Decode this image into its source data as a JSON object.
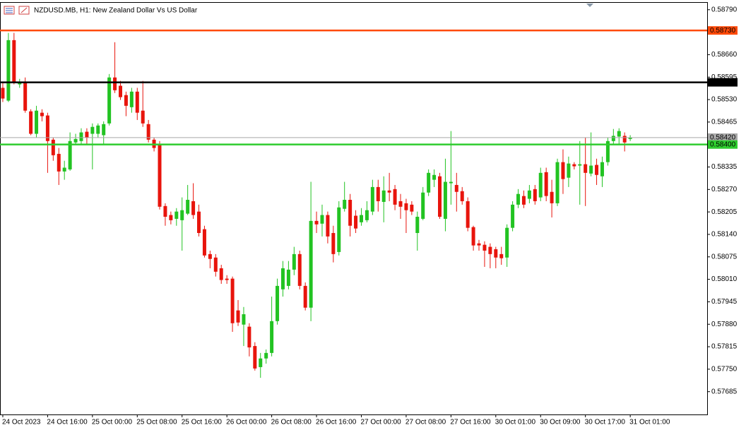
{
  "chart_data": {
    "type": "candlestick",
    "title": "NZDUSD.MB, H1:  New Zealand Dollar Vs US Dollar",
    "up_color": "#22c322",
    "down_color": "#e8140c",
    "ylim": [
      0.57619,
      0.58812
    ],
    "yticks": [
      {
        "value": 0.5879,
        "label": "0.58790"
      },
      {
        "value": 0.5866,
        "label": "0.58660"
      },
      0.58595,
      {
        "value": 0.5853,
        "label": "0.58530"
      },
      0.58465,
      0.58335,
      {
        "value": 0.5827,
        "label": "0.58270"
      },
      0.58205,
      {
        "value": 0.5814,
        "label": "0.58140"
      },
      0.58075,
      {
        "value": 0.5801,
        "label": "0.58010"
      },
      0.57945,
      {
        "value": 0.5788,
        "label": "0.57880"
      },
      0.57815,
      {
        "value": 0.5775,
        "label": "0.57750"
      },
      0.57685
    ],
    "categories": [
      "24 Oct 2023",
      null,
      null,
      null,
      null,
      null,
      null,
      null,
      "24 Oct 16:00",
      null,
      null,
      null,
      null,
      null,
      null,
      null,
      "25 Oct 00:00",
      null,
      null,
      null,
      null,
      null,
      null,
      null,
      "25 Oct 08:00",
      null,
      null,
      null,
      null,
      null,
      null,
      null,
      "25 Oct 16:00",
      null,
      null,
      null,
      null,
      null,
      null,
      null,
      "26 Oct 00:00",
      null,
      null,
      null,
      null,
      null,
      null,
      null,
      "26 Oct 08:00",
      null,
      null,
      null,
      null,
      null,
      null,
      null,
      "26 Oct 16:00",
      null,
      null,
      null,
      null,
      null,
      null,
      null,
      "27 Oct 00:00",
      null,
      null,
      null,
      null,
      null,
      null,
      null,
      "27 Oct 08:00",
      null,
      null,
      null,
      null,
      null,
      null,
      null,
      "27 Oct 16:00",
      null,
      null,
      null,
      null,
      null,
      null,
      null,
      "30 Oct 01:00",
      null,
      null,
      null,
      null,
      null,
      null,
      null,
      "30 Oct 09:00",
      null,
      null,
      null,
      null,
      null,
      null,
      null,
      "30 Oct 17:00",
      null,
      null,
      null,
      null,
      null,
      null,
      null,
      "31 Oct 01:00"
    ],
    "open": [
      0.58564,
      0.58527,
      0.58702,
      0.58574,
      0.58578,
      0.58496,
      0.58431,
      0.58492,
      0.58484,
      0.58414,
      0.58373,
      0.58322,
      0.58328,
      0.58406,
      0.5841,
      0.58437,
      0.58431,
      0.58431,
      0.58427,
      0.58461,
      0.58594,
      0.5857,
      0.58543,
      0.58508,
      0.58553,
      0.58498,
      0.58459,
      0.58414,
      0.584,
      0.58222,
      0.58196,
      0.58185,
      0.58181,
      0.582,
      0.58236,
      0.58206,
      0.58155,
      0.58083,
      0.58073,
      0.58042,
      0.58012,
      0.58012,
      0.5792,
      0.57879,
      0.57873,
      0.57817,
      0.57756,
      0.57781,
      0.57797,
      0.57889,
      0.57981,
      0.57991,
      0.58038,
      0.58083,
      0.57991,
      0.57928,
      0.58179,
      0.58171,
      0.58196,
      0.58144,
      0.58089,
      0.58214,
      0.5824,
      0.58194,
      0.58175,
      0.58181,
      0.58206,
      0.58277,
      0.58234,
      0.58267,
      0.58271,
      0.58236,
      0.5823,
      0.58226,
      0.58144,
      0.58185,
      0.58261,
      0.58298,
      0.58308,
      0.58185,
      0.58288,
      0.58283,
      0.58265,
      0.58236,
      0.58161,
      0.58114,
      0.5811,
      0.58104,
      0.58097,
      0.58083,
      0.58073,
      0.58159,
      0.58226,
      0.58251,
      0.58243,
      0.58271,
      0.58247,
      0.5832,
      0.58263,
      0.5823,
      0.58349,
      0.58304,
      0.58343,
      0.58339,
      0.58343,
      0.58316,
      0.58341,
      0.58308,
      0.58349,
      0.5841,
      0.58423,
      0.58425,
      0.58416
    ],
    "high": [
      0.58578,
      0.58723,
      0.58723,
      0.5859,
      0.58594,
      0.58502,
      0.58512,
      0.58502,
      0.58492,
      0.5842,
      0.5839,
      0.58353,
      0.58435,
      0.58431,
      0.58447,
      0.58447,
      0.58461,
      0.58461,
      0.58467,
      0.58604,
      0.58696,
      0.58584,
      0.58553,
      0.58564,
      0.58564,
      0.58584,
      0.58471,
      0.5842,
      0.5841,
      0.5823,
      0.58206,
      0.58216,
      0.58247,
      0.58283,
      0.58288,
      0.58226,
      0.58165,
      0.58093,
      0.58083,
      0.58052,
      0.58022,
      0.58018,
      0.5795,
      0.5793,
      0.57883,
      0.57828,
      0.57797,
      0.57807,
      0.5796,
      0.58012,
      0.58063,
      0.58063,
      0.58104,
      0.58093,
      0.58001,
      0.58292,
      0.58206,
      0.58226,
      0.58206,
      0.58165,
      0.58236,
      0.58292,
      0.58257,
      0.5821,
      0.58216,
      0.58236,
      0.58298,
      0.58298,
      0.58308,
      0.58318,
      0.58283,
      0.58257,
      0.58243,
      0.58236,
      0.58206,
      0.58277,
      0.58328,
      0.58328,
      0.58318,
      0.58359,
      0.58439,
      0.58318,
      0.58277,
      0.58247,
      0.58165,
      0.58124,
      0.5812,
      0.58114,
      0.58104,
      0.58104,
      0.58169,
      0.58236,
      0.58271,
      0.58267,
      0.58283,
      0.58283,
      0.58333,
      0.58333,
      0.58298,
      0.58359,
      0.58386,
      0.58365,
      0.58349,
      0.5841,
      0.5842,
      0.58435,
      0.58359,
      0.58365,
      0.5842,
      0.58445,
      0.58447,
      0.58435,
      0.58427
    ],
    "low": [
      0.58523,
      0.58523,
      0.58574,
      0.58564,
      0.58492,
      0.58427,
      0.5842,
      0.58467,
      0.58318,
      0.58353,
      0.58283,
      0.58298,
      0.58324,
      0.584,
      0.584,
      0.584,
      0.58328,
      0.5842,
      0.584,
      0.58455,
      0.58549,
      0.58529,
      0.58482,
      0.58492,
      0.58471,
      0.58451,
      0.58406,
      0.5838,
      0.58212,
      0.58165,
      0.58169,
      0.58165,
      0.58093,
      0.58196,
      0.58185,
      0.58134,
      0.58073,
      0.58042,
      0.58018,
      0.57997,
      0.57997,
      0.57858,
      0.57875,
      0.57817,
      0.57787,
      0.57746,
      0.57725,
      0.57766,
      0.57787,
      0.57879,
      0.5796,
      0.57981,
      0.58022,
      0.57981,
      0.5792,
      0.57889,
      0.58144,
      0.58134,
      0.58114,
      0.58059,
      0.58079,
      0.58206,
      0.58134,
      0.58144,
      0.58165,
      0.58175,
      0.58196,
      0.58206,
      0.58175,
      0.58236,
      0.5821,
      0.58185,
      0.58144,
      0.58196,
      0.58093,
      0.58181,
      0.58251,
      0.58277,
      0.58185,
      0.58149,
      0.58226,
      0.58206,
      0.58226,
      0.58149,
      0.58093,
      0.58093,
      0.58046,
      0.58042,
      0.58042,
      0.58052,
      0.58046,
      0.58149,
      0.58216,
      0.58216,
      0.5823,
      0.58226,
      0.58236,
      0.58236,
      0.58189,
      0.58222,
      0.58257,
      0.58277,
      0.58328,
      0.58226,
      0.58222,
      0.58308,
      0.58283,
      0.58277,
      0.58339,
      0.584,
      0.584,
      0.5838,
      0.5841
    ],
    "close": [
      0.58533,
      0.58702,
      0.5858,
      0.5858,
      0.58498,
      0.58431,
      0.58498,
      0.58482,
      0.5841,
      0.58369,
      0.58322,
      0.58333,
      0.5841,
      0.58416,
      0.58435,
      0.5842,
      0.58451,
      0.58455,
      0.58459,
      0.58594,
      0.58557,
      0.58537,
      0.58512,
      0.58553,
      0.58492,
      0.58461,
      0.58414,
      0.5839,
      0.5822,
      0.58191,
      0.58181,
      0.58206,
      0.5821,
      0.5824,
      0.58196,
      0.58144,
      0.58079,
      0.58069,
      0.58032,
      0.58008,
      0.58008,
      0.57883,
      0.57885,
      0.57909,
      0.57813,
      0.57752,
      0.57781,
      0.57797,
      0.57889,
      0.57991,
      0.58042,
      0.58038,
      0.58083,
      0.57991,
      0.57928,
      0.58179,
      0.58169,
      0.58196,
      0.58134,
      0.58083,
      0.58218,
      0.5824,
      0.58165,
      0.58157,
      0.58196,
      0.5821,
      0.58277,
      0.58236,
      0.58267,
      0.58261,
      0.58226,
      0.5822,
      0.5821,
      0.58206,
      0.58191,
      0.58261,
      0.58318,
      0.58312,
      0.58191,
      0.58292,
      0.58292,
      0.58263,
      0.58236,
      0.58159,
      0.58108,
      0.58108,
      0.58093,
      0.58083,
      0.58073,
      0.58071,
      0.58159,
      0.58226,
      0.58257,
      0.58226,
      0.58267,
      0.58236,
      0.58318,
      0.58251,
      0.5823,
      0.58349,
      0.583,
      0.58345,
      0.58337,
      0.58343,
      0.58318,
      0.58339,
      0.58312,
      0.58349,
      0.5841,
      0.58425,
      0.58439,
      0.58406,
      0.5842
    ],
    "levels": [
      {
        "value": 0.5873,
        "label": "0.58730",
        "color": "#ff4a0a",
        "text_color": "#ffffff",
        "width": 2.5
      },
      {
        "value": 0.5858,
        "label": "0.58580",
        "color": "#000000",
        "text_color": "#ffffff",
        "width": 2.5
      },
      {
        "value": 0.5842,
        "label": "0.58420",
        "color": "#a8a8a8",
        "text_color": "#000000",
        "width": 1
      },
      {
        "value": 0.584,
        "label": "0.58400",
        "color": "#2ecc2e",
        "text_color": "#ffffff",
        "width": 2.5
      }
    ]
  }
}
